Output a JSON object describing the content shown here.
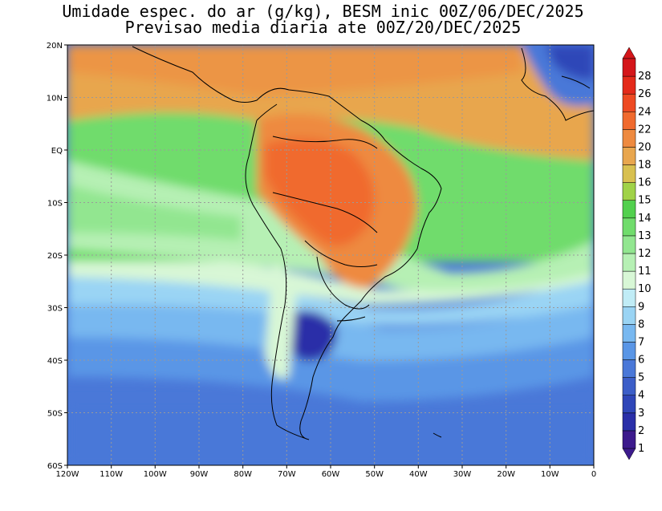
{
  "title": {
    "line1": "Umidade espec. do ar (g/kg), BESM inic 00Z/06/DEC/2025",
    "line2": "Previsao media diaria ate 00Z/20/DEC/2025"
  },
  "map": {
    "lat_labels": [
      "20N",
      "10N",
      "EQ",
      "10S",
      "20S",
      "30S",
      "40S",
      "50S",
      "60S"
    ],
    "lon_labels": [
      "120W",
      "110W",
      "100W",
      "90W",
      "80W",
      "70W",
      "60W",
      "50W",
      "40W",
      "30W",
      "20W",
      "10W",
      "0"
    ],
    "lat_range": [
      -60,
      20
    ],
    "lon_range": [
      -120,
      0
    ]
  },
  "colorbar": {
    "labels": [
      "1",
      "2",
      "3",
      "4",
      "5",
      "6",
      "7",
      "8",
      "9",
      "10",
      "11",
      "12",
      "13",
      "14",
      "15",
      "16",
      "18",
      "20",
      "22",
      "24",
      "26",
      "28"
    ],
    "colors": [
      "#3c1a8c",
      "#2a2fa8",
      "#2f46b8",
      "#3c5ec8",
      "#4a78d8",
      "#5a96e6",
      "#78b8f0",
      "#9ad4f4",
      "#c0ecf6",
      "#d8f7d6",
      "#b6f0b4",
      "#92e690",
      "#70dc6c",
      "#52d04e",
      "#a0d248",
      "#d8c050",
      "#e8a64e",
      "#ee8a40",
      "#f06a2e",
      "#ee4a22",
      "#e42a1a",
      "#d4161a"
    ]
  }
}
